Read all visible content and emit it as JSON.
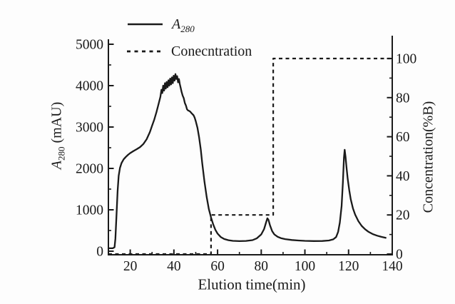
{
  "figure": {
    "background": "#fdfdfd",
    "line_color": "#1a1a1a"
  },
  "legend": {
    "items": [
      {
        "label_main": "A",
        "label_sub": "280",
        "style": "solid"
      },
      {
        "label": "Conecntration",
        "style": "dashed"
      }
    ]
  },
  "axes": {
    "x": {
      "label": "Elution time(min)"
    },
    "y_left": {
      "label_main": "A",
      "label_sub": "280",
      "label_rest": " (mAU)"
    },
    "y_right": {
      "label": "Concentration(%B)"
    }
  },
  "chart_data": {
    "type": "line",
    "title": "",
    "xlabel": "Elution time(min)",
    "ylabel_left": "A280 (mAU)",
    "ylabel_right": "Concentration(%B)",
    "xlim": [
      10,
      140
    ],
    "ylim_left": [
      0,
      5000
    ],
    "ylim_right": [
      0,
      100
    ],
    "grid": false,
    "legend_position": "top-left-above-plot",
    "x_major_ticks": [
      20,
      40,
      60,
      80,
      100,
      120,
      140
    ],
    "x_minor_ticks": [
      30,
      50,
      70,
      90,
      110,
      130
    ],
    "y_left_major_ticks": [
      0,
      1000,
      2000,
      3000,
      4000,
      5000
    ],
    "y_left_minor_ticks": [
      500,
      1500,
      2500,
      3500,
      4500
    ],
    "y_right_major_ticks": [
      0,
      20,
      40,
      60,
      80,
      100
    ],
    "y_right_minor_ticks": [
      10,
      30,
      50,
      70,
      90
    ],
    "series": [
      {
        "name": "A280",
        "axis": "left",
        "style": "solid",
        "units": {
          "x": "min",
          "y": "mAU"
        },
        "points": [
          [
            10,
            70
          ],
          [
            12,
            70
          ],
          [
            12.8,
            95
          ],
          [
            13.2,
            300
          ],
          [
            13.7,
            850
          ],
          [
            14.2,
            1450
          ],
          [
            14.7,
            1820
          ],
          [
            15.3,
            2010
          ],
          [
            16,
            2130
          ],
          [
            17,
            2220
          ],
          [
            18,
            2280
          ],
          [
            19,
            2330
          ],
          [
            20,
            2370
          ],
          [
            21.5,
            2420
          ],
          [
            23,
            2465
          ],
          [
            24.5,
            2515
          ],
          [
            26,
            2590
          ],
          [
            27.5,
            2705
          ],
          [
            29,
            2880
          ],
          [
            30,
            3030
          ],
          [
            31,
            3180
          ],
          [
            32,
            3360
          ],
          [
            33,
            3560
          ],
          [
            33.8,
            3730
          ],
          [
            34.3,
            3900
          ],
          [
            34.7,
            3820
          ],
          [
            35.1,
            4000
          ],
          [
            35.5,
            3880
          ],
          [
            35.9,
            4060
          ],
          [
            36.3,
            3930
          ],
          [
            36.7,
            4090
          ],
          [
            37.1,
            3960
          ],
          [
            37.5,
            4130
          ],
          [
            37.9,
            4000
          ],
          [
            38.3,
            4170
          ],
          [
            38.7,
            4030
          ],
          [
            39.1,
            4200
          ],
          [
            39.5,
            4060
          ],
          [
            39.9,
            4240
          ],
          [
            40.3,
            4120
          ],
          [
            40.7,
            4280
          ],
          [
            41.1,
            4160
          ],
          [
            41.5,
            4230
          ],
          [
            41.9,
            4080
          ],
          [
            42.3,
            4160
          ],
          [
            42.7,
            4040
          ],
          [
            43.1,
            3950
          ],
          [
            43.5,
            3850
          ],
          [
            44,
            3760
          ],
          [
            44.5,
            3700
          ],
          [
            45,
            3580
          ],
          [
            45.5,
            3520
          ],
          [
            46,
            3430
          ],
          [
            46.5,
            3400
          ],
          [
            47,
            3390
          ],
          [
            47.5,
            3370
          ],
          [
            48,
            3340
          ],
          [
            48.5,
            3310
          ],
          [
            49,
            3285
          ],
          [
            49.5,
            3230
          ],
          [
            50,
            3140
          ],
          [
            50.8,
            2980
          ],
          [
            51.5,
            2760
          ],
          [
            52.3,
            2460
          ],
          [
            53,
            2120
          ],
          [
            54,
            1680
          ],
          [
            55,
            1310
          ],
          [
            56,
            1020
          ],
          [
            57,
            815
          ],
          [
            58,
            645
          ],
          [
            59,
            515
          ],
          [
            60,
            425
          ],
          [
            61.5,
            340
          ],
          [
            63,
            295
          ],
          [
            65,
            265
          ],
          [
            67,
            250
          ],
          [
            70,
            243
          ],
          [
            73,
            249
          ],
          [
            76,
            268
          ],
          [
            78,
            312
          ],
          [
            80,
            405
          ],
          [
            81.3,
            535
          ],
          [
            82.2,
            690
          ],
          [
            82.8,
            795
          ],
          [
            83.3,
            760
          ],
          [
            84,
            625
          ],
          [
            85,
            485
          ],
          [
            86,
            405
          ],
          [
            87.5,
            348
          ],
          [
            89,
            316
          ],
          [
            91,
            292
          ],
          [
            94,
            270
          ],
          [
            97,
            258
          ],
          [
            100,
            250
          ],
          [
            104,
            245
          ],
          [
            108,
            247
          ],
          [
            111,
            258
          ],
          [
            113,
            286
          ],
          [
            114.3,
            342
          ],
          [
            115.2,
            465
          ],
          [
            116,
            690
          ],
          [
            116.8,
            1090
          ],
          [
            117.4,
            1660
          ],
          [
            117.9,
            2260
          ],
          [
            118.2,
            2450
          ],
          [
            118.6,
            2285
          ],
          [
            119,
            2055
          ],
          [
            119.6,
            1755
          ],
          [
            120.3,
            1475
          ],
          [
            121,
            1255
          ],
          [
            122,
            1035
          ],
          [
            123,
            885
          ],
          [
            124.5,
            725
          ],
          [
            126,
            612
          ],
          [
            127.5,
            532
          ],
          [
            129,
            472
          ],
          [
            131,
            416
          ],
          [
            133,
            376
          ],
          [
            135,
            346
          ],
          [
            137,
            322
          ]
        ]
      },
      {
        "name": "Conecntration",
        "axis": "right",
        "style": "dashed",
        "units": {
          "x": "min",
          "y": "%B"
        },
        "points": [
          [
            10,
            0
          ],
          [
            57,
            0
          ],
          [
            57,
            20
          ],
          [
            85.5,
            20
          ],
          [
            85.5,
            100
          ],
          [
            140,
            100
          ]
        ]
      }
    ]
  }
}
